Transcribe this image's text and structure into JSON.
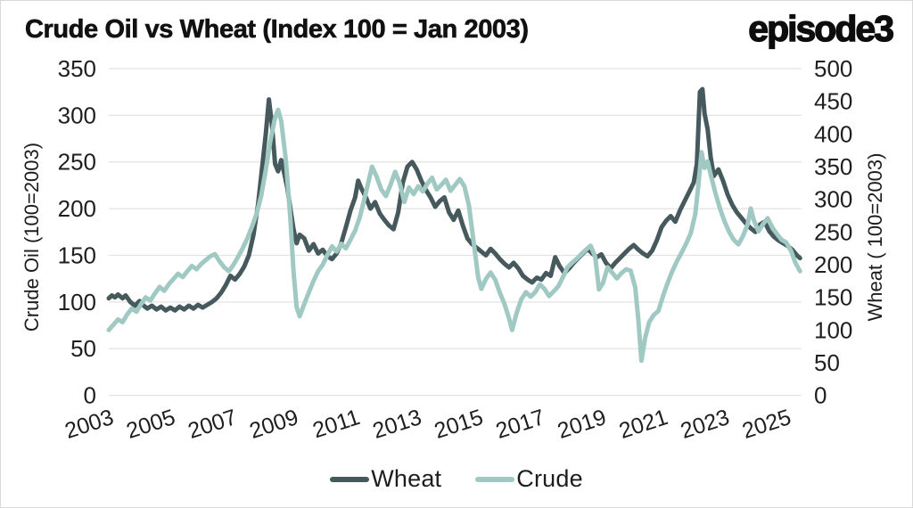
{
  "header": {
    "title": "Crude Oil vs Wheat (Index 100 = Jan 2003)",
    "logo_text": "episode3"
  },
  "colors": {
    "wheat_line": "#46595C",
    "crude_line": "#A0C9C3",
    "gridline": "#e3e3e3",
    "text": "#1d1d1d",
    "background": "#ffffff"
  },
  "chart_data": {
    "type": "line",
    "title": "Crude Oil vs Wheat (Index 100 = Jan 2003)",
    "grid": "horizontal-only",
    "legend_position": "bottom-center",
    "left_axis": {
      "label": "Crude Oil (100=2003)",
      "min": 0,
      "max": 350,
      "tick_step": 50,
      "ticks": [
        0,
        50,
        100,
        150,
        200,
        250,
        300,
        350
      ]
    },
    "right_axis": {
      "label": "Wheat ( 100=2003)",
      "min": 0,
      "max": 500,
      "tick_step": 50,
      "ticks": [
        0,
        50,
        100,
        150,
        200,
        250,
        300,
        350,
        400,
        450,
        500
      ]
    },
    "x_axis": {
      "min": 2003,
      "max": 2025.5,
      "ticks": [
        2003,
        2005,
        2007,
        2009,
        2011,
        2013,
        2015,
        2017,
        2019,
        2021,
        2023,
        2025
      ],
      "label_rotation_deg": -18
    },
    "legend": [
      {
        "name": "Wheat",
        "color": "#46595C"
      },
      {
        "name": "Crude",
        "color": "#A0C9C3"
      }
    ],
    "series": [
      {
        "name": "Wheat",
        "axis": "left",
        "color": "#46595C",
        "x": [
          2003.0,
          2003.1,
          2003.2,
          2003.3,
          2003.45,
          2003.55,
          2003.7,
          2003.85,
          2004.0,
          2004.1,
          2004.25,
          2004.4,
          2004.55,
          2004.7,
          2004.85,
          2005.0,
          2005.15,
          2005.3,
          2005.45,
          2005.6,
          2005.75,
          2005.9,
          2006.05,
          2006.2,
          2006.35,
          2006.5,
          2006.65,
          2006.8,
          2006.95,
          2007.1,
          2007.25,
          2007.4,
          2007.55,
          2007.7,
          2007.85,
          2008.0,
          2008.1,
          2008.2,
          2008.3,
          2008.4,
          2008.5,
          2008.6,
          2008.7,
          2008.8,
          2008.9,
          2009.0,
          2009.1,
          2009.2,
          2009.35,
          2009.5,
          2009.65,
          2009.8,
          2009.95,
          2010.1,
          2010.25,
          2010.4,
          2010.55,
          2010.7,
          2010.85,
          2011.0,
          2011.1,
          2011.2,
          2011.35,
          2011.5,
          2011.65,
          2011.8,
          2011.95,
          2012.1,
          2012.25,
          2012.4,
          2012.55,
          2012.7,
          2012.85,
          2013.0,
          2013.15,
          2013.3,
          2013.45,
          2013.6,
          2013.75,
          2013.9,
          2014.05,
          2014.2,
          2014.35,
          2014.5,
          2014.65,
          2014.8,
          2014.95,
          2015.1,
          2015.25,
          2015.4,
          2015.55,
          2015.7,
          2015.85,
          2016.0,
          2016.15,
          2016.3,
          2016.45,
          2016.6,
          2016.75,
          2016.9,
          2017.05,
          2017.2,
          2017.35,
          2017.5,
          2017.65,
          2017.8,
          2017.95,
          2018.1,
          2018.25,
          2018.4,
          2018.55,
          2018.7,
          2018.85,
          2019.0,
          2019.15,
          2019.3,
          2019.45,
          2019.6,
          2019.75,
          2019.9,
          2020.05,
          2020.2,
          2020.35,
          2020.5,
          2020.65,
          2020.8,
          2020.95,
          2021.1,
          2021.25,
          2021.4,
          2021.55,
          2021.7,
          2021.85,
          2022.0,
          2022.1,
          2022.2,
          2022.28,
          2022.35,
          2022.45,
          2022.55,
          2022.65,
          2022.8,
          2022.95,
          2023.1,
          2023.25,
          2023.4,
          2023.55,
          2023.7,
          2023.85,
          2024.0,
          2024.15,
          2024.3,
          2024.45,
          2024.6,
          2024.75,
          2024.9,
          2025.05,
          2025.2,
          2025.35,
          2025.45
        ],
        "values": [
          104,
          107,
          105,
          108,
          104,
          107,
          100,
          96,
          101,
          97,
          93,
          96,
          92,
          95,
          91,
          94,
          91,
          95,
          92,
          96,
          93,
          97,
          94,
          97,
          100,
          104,
          110,
          118,
          128,
          124,
          130,
          138,
          150,
          172,
          205,
          250,
          280,
          317,
          290,
          248,
          240,
          252,
          238,
          222,
          200,
          178,
          163,
          172,
          168,
          155,
          162,
          152,
          156,
          149,
          146,
          152,
          163,
          180,
          198,
          212,
          230,
          222,
          212,
          200,
          207,
          195,
          188,
          182,
          178,
          196,
          228,
          245,
          250,
          242,
          230,
          220,
          212,
          202,
          208,
          212,
          196,
          188,
          198,
          182,
          168,
          162,
          158,
          154,
          150,
          157,
          152,
          146,
          141,
          137,
          142,
          136,
          128,
          124,
          121,
          126,
          124,
          131,
          128,
          148,
          138,
          131,
          136,
          142,
          147,
          152,
          157,
          152,
          148,
          151,
          142,
          136,
          142,
          147,
          152,
          157,
          161,
          156,
          152,
          149,
          155,
          166,
          180,
          187,
          192,
          186,
          198,
          208,
          218,
          228,
          248,
          325,
          328,
          302,
          285,
          255,
          235,
          242,
          230,
          215,
          204,
          196,
          190,
          184,
          179,
          175,
          183,
          186,
          176,
          170,
          166,
          163,
          160,
          156,
          150,
          147
        ]
      },
      {
        "name": "Crude",
        "axis": "right",
        "color": "#A0C9C3",
        "x": [
          2003.0,
          2003.15,
          2003.3,
          2003.45,
          2003.6,
          2003.75,
          2003.9,
          2004.05,
          2004.2,
          2004.35,
          2004.5,
          2004.65,
          2004.8,
          2004.95,
          2005.1,
          2005.25,
          2005.4,
          2005.55,
          2005.7,
          2005.85,
          2006.0,
          2006.15,
          2006.3,
          2006.45,
          2006.6,
          2006.75,
          2006.9,
          2007.05,
          2007.2,
          2007.35,
          2007.5,
          2007.65,
          2007.8,
          2007.95,
          2008.1,
          2008.25,
          2008.4,
          2008.5,
          2008.6,
          2008.75,
          2008.9,
          2009.0,
          2009.1,
          2009.2,
          2009.35,
          2009.5,
          2009.65,
          2009.8,
          2009.95,
          2010.1,
          2010.25,
          2010.4,
          2010.55,
          2010.7,
          2010.85,
          2011.0,
          2011.15,
          2011.3,
          2011.45,
          2011.55,
          2011.7,
          2011.85,
          2012.0,
          2012.15,
          2012.3,
          2012.45,
          2012.6,
          2012.75,
          2012.9,
          2013.05,
          2013.2,
          2013.35,
          2013.5,
          2013.65,
          2013.8,
          2013.95,
          2014.1,
          2014.25,
          2014.4,
          2014.55,
          2014.7,
          2014.85,
          2015.0,
          2015.1,
          2015.25,
          2015.4,
          2015.55,
          2015.7,
          2015.85,
          2016.0,
          2016.1,
          2016.25,
          2016.4,
          2016.55,
          2016.7,
          2016.85,
          2017.0,
          2017.15,
          2017.3,
          2017.45,
          2017.6,
          2017.75,
          2017.9,
          2018.05,
          2018.2,
          2018.35,
          2018.5,
          2018.65,
          2018.8,
          2018.92,
          2019.05,
          2019.2,
          2019.35,
          2019.5,
          2019.65,
          2019.8,
          2019.95,
          2020.1,
          2020.2,
          2020.3,
          2020.42,
          2020.55,
          2020.7,
          2020.85,
          2021.0,
          2021.15,
          2021.3,
          2021.45,
          2021.6,
          2021.75,
          2021.9,
          2022.05,
          2022.15,
          2022.25,
          2022.35,
          2022.45,
          2022.55,
          2022.7,
          2022.85,
          2023.0,
          2023.15,
          2023.3,
          2023.45,
          2023.6,
          2023.75,
          2023.85,
          2023.95,
          2024.1,
          2024.25,
          2024.4,
          2024.55,
          2024.7,
          2024.85,
          2025.0,
          2025.15,
          2025.3,
          2025.45
        ],
        "values": [
          100,
          108,
          116,
          112,
          124,
          133,
          128,
          140,
          150,
          145,
          156,
          166,
          160,
          170,
          178,
          186,
          181,
          190,
          198,
          193,
          201,
          207,
          213,
          216,
          205,
          196,
          190,
          200,
          212,
          225,
          240,
          258,
          278,
          305,
          345,
          390,
          425,
          437,
          420,
          360,
          270,
          190,
          135,
          121,
          140,
          158,
          175,
          190,
          200,
          215,
          228,
          220,
          232,
          225,
          238,
          252,
          272,
          300,
          330,
          350,
          335,
          315,
          305,
          322,
          342,
          325,
          296,
          318,
          308,
          320,
          312,
          324,
          333,
          315,
          322,
          330,
          313,
          322,
          331,
          320,
          290,
          235,
          180,
          163,
          178,
          188,
          177,
          157,
          140,
          118,
          100,
          127,
          147,
          158,
          151,
          158,
          170,
          163,
          152,
          159,
          167,
          181,
          196,
          203,
          209,
          216,
          223,
          229,
          212,
          162,
          172,
          196,
          188,
          179,
          187,
          193,
          191,
          165,
          115,
          53,
          88,
          112,
          123,
          129,
          152,
          172,
          190,
          205,
          218,
          232,
          248,
          278,
          322,
          372,
          348,
          358,
          338,
          310,
          286,
          266,
          250,
          238,
          231,
          244,
          262,
          286,
          268,
          251,
          262,
          271,
          257,
          247,
          238,
          234,
          222,
          203,
          190
        ]
      }
    ]
  }
}
